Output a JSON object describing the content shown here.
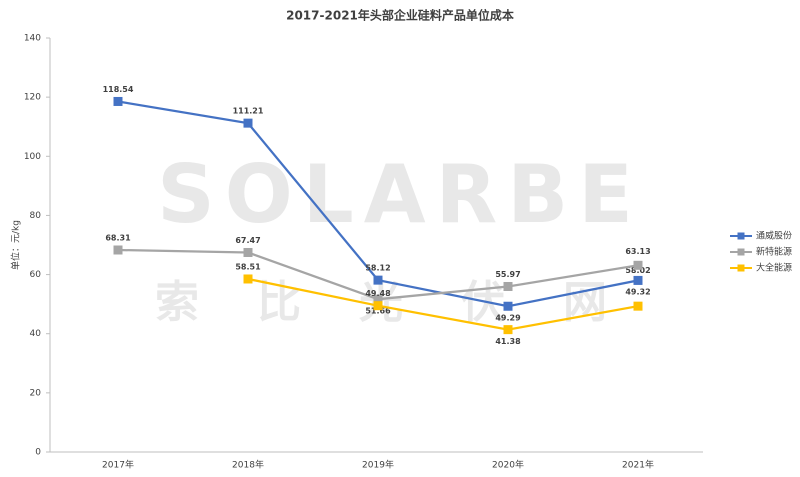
{
  "watermark": {
    "logo": "SOLARBE",
    "text": "索比光伏网"
  },
  "chart_data": {
    "type": "line",
    "title": "2017-2021年头部企业硅料产品单位成本",
    "y_label": "单位：元/kg",
    "categories": [
      "2017年",
      "2018年",
      "2019年",
      "2020年",
      "2021年"
    ],
    "series": [
      {
        "name": "通威股份",
        "color": "#4472c4",
        "values": [
          118.54,
          111.21,
          58.12,
          49.29,
          58.02
        ]
      },
      {
        "name": "新特能源",
        "color": "#a5a5a5",
        "values": [
          68.31,
          67.47,
          51.66,
          55.97,
          63.13
        ]
      },
      {
        "name": "大全能源",
        "color": "#ffc000",
        "values": [
          null,
          58.51,
          49.48,
          41.38,
          49.32
        ]
      }
    ],
    "ylim": [
      0,
      140
    ],
    "yticks": [
      0,
      20,
      40,
      60,
      80,
      100,
      120,
      140
    ],
    "legend": "right"
  }
}
